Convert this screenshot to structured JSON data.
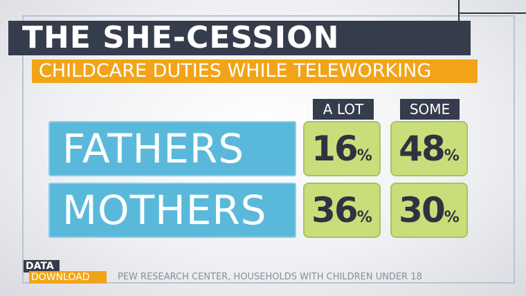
{
  "title": "THE SHE-CESSION",
  "subtitle": "CHILDCARE DUTIES WHILE TELEWORKING",
  "chart_data": {
    "type": "table",
    "title": "THE SHE-CESSION",
    "subtitle": "CHILDCARE DUTIES WHILE TELEWORKING",
    "columns": [
      "A LOT",
      "SOME"
    ],
    "rows": [
      {
        "label": "FATHERS",
        "values": [
          16,
          48
        ],
        "display": [
          "16",
          "48"
        ]
      },
      {
        "label": "MOTHERS",
        "values": [
          36,
          30
        ],
        "display": [
          "36",
          "30"
        ]
      }
    ],
    "unit": "%",
    "source": "PEW RESEARCH CENTER, HOUSEHOLDS WITH CHILDREN UNDER 18"
  },
  "logo": {
    "line1": "DATA",
    "line2": "DOWNLOAD"
  },
  "colors": {
    "title_bg": "#353c4b",
    "accent_orange": "#f2a418",
    "label_blue": "#5ab9db",
    "cell_green": "#c9de7a"
  }
}
